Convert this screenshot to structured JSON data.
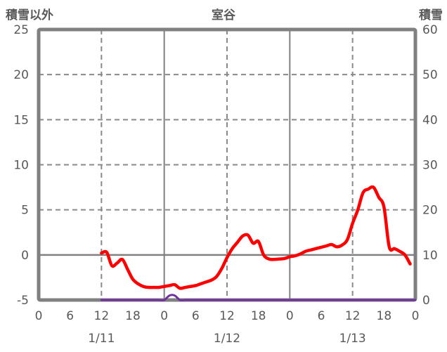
{
  "chart_data": {
    "type": "line",
    "title": "室谷",
    "border_color": "#808080",
    "gridline_color": "#8a8a8a",
    "text_color": "#595959",
    "left_axis": {
      "title": "積雪以外",
      "min": -5,
      "max": 25,
      "ticks": [
        -5,
        0,
        5,
        10,
        15,
        20,
        25
      ]
    },
    "right_axis": {
      "title": "積雪",
      "min": 0,
      "max": 60,
      "ticks": [
        0,
        10,
        20,
        30,
        40,
        50,
        60
      ]
    },
    "x_axis": {
      "start_hour": 0,
      "end_hour": 72,
      "tick_interval_hours": 6,
      "tick_labels": [
        "0",
        "6",
        "12",
        "18",
        "0",
        "6",
        "12",
        "18",
        "0",
        "6",
        "12",
        "18",
        "0"
      ],
      "day_labels": [
        {
          "label": "1/11",
          "noon_hour": 12
        },
        {
          "label": "1/12",
          "noon_hour": 36
        },
        {
          "label": "1/13",
          "noon_hour": 60
        }
      ]
    },
    "series": [
      {
        "name": "積雪以外",
        "slug": "non-snow-series-line",
        "axis": "left",
        "color": "#ff0000",
        "width": 4.5,
        "start_hour": 12,
        "interval_hours": 1,
        "values": [
          0.2,
          0.3,
          -1.2,
          -0.9,
          -0.5,
          -1.6,
          -2.7,
          -3.2,
          -3.5,
          -3.6,
          -3.6,
          -3.6,
          -3.5,
          -3.4,
          -3.3,
          -3.7,
          -3.6,
          -3.5,
          -3.4,
          -3.2,
          -3.0,
          -2.8,
          -2.4,
          -1.5,
          -0.3,
          0.7,
          1.4,
          2.1,
          2.2,
          1.3,
          1.5,
          0.0,
          -0.45,
          -0.5,
          -0.45,
          -0.4,
          -0.2,
          -0.1,
          0.1,
          0.4,
          0.55,
          0.7,
          0.85,
          1.0,
          1.15,
          0.9,
          1.1,
          1.7,
          3.5,
          5.0,
          6.9,
          7.3,
          7.5,
          6.4,
          5.3,
          0.9,
          0.7,
          0.4,
          0.0,
          -1.0
        ]
      },
      {
        "name": "積雪",
        "slug": "snow-depth-series-line",
        "axis": "right",
        "color": "#7030a0",
        "width": 3,
        "start_hour": 12,
        "interval_hours": 1,
        "values": [
          0,
          0,
          0,
          0,
          0,
          0,
          0,
          0,
          0,
          0,
          0,
          0,
          0,
          1,
          1,
          0,
          0,
          0,
          0,
          0,
          0,
          0,
          0,
          0,
          0,
          0,
          0,
          0,
          0,
          0,
          0,
          0,
          0,
          0,
          0,
          0,
          0,
          0,
          0,
          0,
          0,
          0,
          0,
          0,
          0,
          0,
          0,
          0,
          0,
          0,
          0,
          0,
          0,
          0,
          0,
          0,
          0,
          0,
          0,
          0,
          0
        ]
      }
    ]
  }
}
